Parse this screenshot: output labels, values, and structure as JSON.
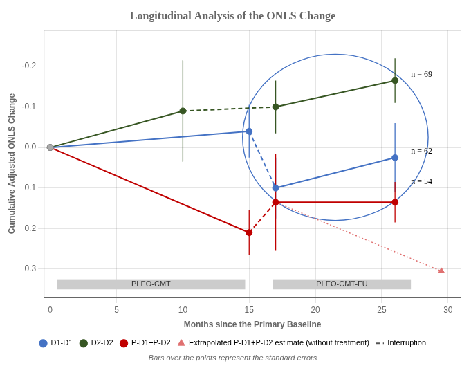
{
  "chart_data": {
    "type": "line",
    "title": "Longitudinal Analysis of the ONLS Change",
    "xlabel": "Months since the Primary Baseline",
    "ylabel": "Cumulative Adjusted ONLS Change",
    "xlim": [
      -0.5,
      31
    ],
    "ylim": [
      0.37,
      -0.29
    ],
    "xticks": [
      0,
      5,
      10,
      15,
      20,
      25,
      30
    ],
    "yticks": [
      -0.2,
      -0.1,
      {
        "value": 0,
        "label": "0.0"
      },
      0.1,
      0.2,
      0.3
    ],
    "grid": true,
    "legend": "bottom",
    "series": [
      {
        "name": "D1-D1",
        "color": "#4472C4",
        "x": [
          0,
          15,
          17,
          26
        ],
        "values": [
          0.0,
          -0.04,
          0.1,
          0.025
        ],
        "errors": [
          0.0,
          0.065,
          0.075,
          0.085
        ],
        "marker": "circle",
        "segment_styles": [
          "solid",
          "dashed",
          "solid"
        ]
      },
      {
        "name": "D2-D2",
        "color": "#375623",
        "x": [
          0,
          10,
          17,
          26
        ],
        "values": [
          0.0,
          -0.09,
          -0.1,
          -0.165
        ],
        "errors": [
          0.0,
          0.125,
          0.065,
          0.055
        ],
        "marker": "circle",
        "segment_styles": [
          "solid",
          "dashed",
          "solid"
        ]
      },
      {
        "name": "P-D1+P-D2",
        "color": "#C00000",
        "x": [
          0,
          15,
          17,
          26
        ],
        "values": [
          0.0,
          0.21,
          0.135,
          0.135
        ],
        "errors": [
          0.0,
          0.055,
          0.12,
          0.05
        ],
        "marker": "circle",
        "segment_styles": [
          "solid",
          "dashed",
          "solid"
        ]
      },
      {
        "name": "Extrapolated P-D1+P-D2 estimate (without treatment)",
        "color": "#e07070",
        "x": [
          17,
          29.5
        ],
        "values": [
          0.135,
          0.305
        ],
        "marker": "triangle",
        "line_style": "dotted"
      }
    ],
    "interruption": "Interruption",
    "note": "Bars over the points represent the standard errors",
    "annotations": [
      {
        "text": "n = 69",
        "x": 27.2,
        "y": -0.175
      },
      {
        "text": "n = 62",
        "x": 27.2,
        "y": 0.015
      },
      {
        "text": "n = 54",
        "x": 27.2,
        "y": 0.09
      }
    ],
    "phases": [
      {
        "label": "PLEO-CMT",
        "start": 0.5,
        "end": 14.7
      },
      {
        "label": "PLEO-CMT-FU",
        "start": 16.8,
        "end": 27.2
      }
    ],
    "phase_y": 0.325,
    "phase_height": 0.025,
    "ellipse": {
      "x": 21.5,
      "y": -0.025,
      "width": 14.0,
      "height": 0.41,
      "color": "#4472C4"
    }
  }
}
